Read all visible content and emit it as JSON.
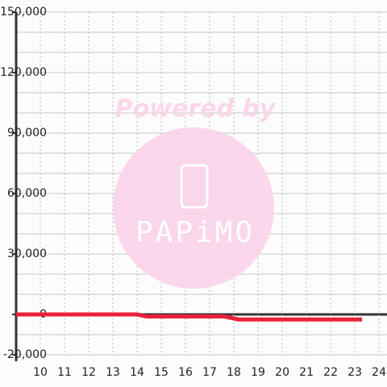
{
  "chart_data": {
    "type": "line",
    "watermark": {
      "text": "Powered by",
      "logo": "PAPiMO"
    },
    "x": [
      9,
      10,
      11,
      12,
      13,
      14,
      14.4,
      15,
      16,
      17,
      17.6,
      18.2,
      19,
      20,
      21,
      22,
      23,
      23.3
    ],
    "series": [
      {
        "color": "#e8213a",
        "values": [
          0,
          0,
          0,
          0,
          0,
          0,
          -1000,
          -1000,
          -1000,
          -1000,
          -1000,
          -2500,
          -2500,
          -2500,
          -2500,
          -2500,
          -2500,
          -2500
        ]
      }
    ],
    "xlim": [
      9,
      24.33
    ],
    "xticks": [
      10,
      11,
      12,
      13,
      14,
      15,
      16,
      17,
      18,
      19,
      20,
      21,
      22,
      23,
      24
    ],
    "ylim": [
      -20000,
      150000
    ],
    "yticks": [
      {
        "value": -20000,
        "label": "-20,000"
      },
      0,
      {
        "value": 30000,
        "label": "30,000"
      },
      {
        "value": 60000,
        "label": "60,000"
      },
      {
        "value": 90000,
        "label": "90,000"
      },
      {
        "value": 120000,
        "label": "120,000"
      },
      {
        "value": 150000,
        "label": "150,000"
      }
    ],
    "yminorticks": [
      -10000,
      10000,
      20000,
      40000,
      50000,
      70000,
      80000,
      100000,
      110000,
      130000,
      140000
    ],
    "grid": true
  }
}
